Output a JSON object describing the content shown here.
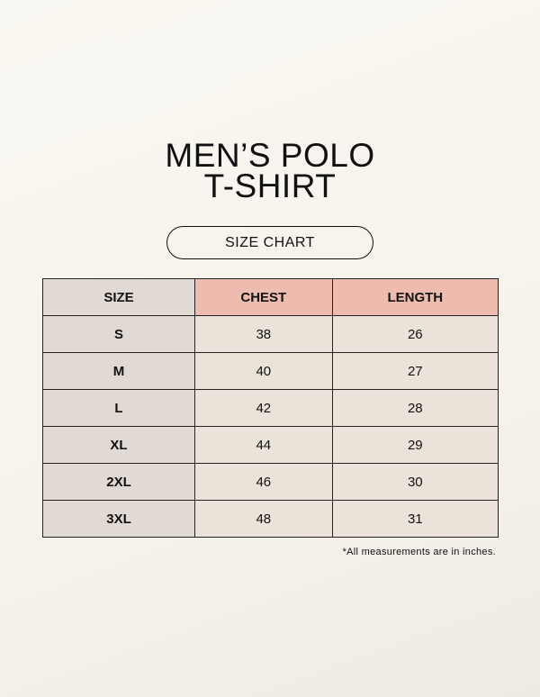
{
  "title": {
    "line1": "MEN’S POLO",
    "line2": "T-SHIRT"
  },
  "subtitle": "SIZE CHART",
  "table": {
    "headers": [
      "SIZE",
      "CHEST",
      "LENGTH"
    ],
    "rows": [
      [
        "S",
        "38",
        "26"
      ],
      [
        "M",
        "40",
        "27"
      ],
      [
        "L",
        "42",
        "28"
      ],
      [
        "XL",
        "44",
        "29"
      ],
      [
        "2XL",
        "46",
        "30"
      ],
      [
        "3XL",
        "48",
        "31"
      ]
    ]
  },
  "footnote": "*All measurements are in inches.",
  "colors": {
    "header_accent": "#edbcae",
    "size_column": "#e0d9d4",
    "cell": "#ebe3d9",
    "background": "#f8f6f0"
  }
}
